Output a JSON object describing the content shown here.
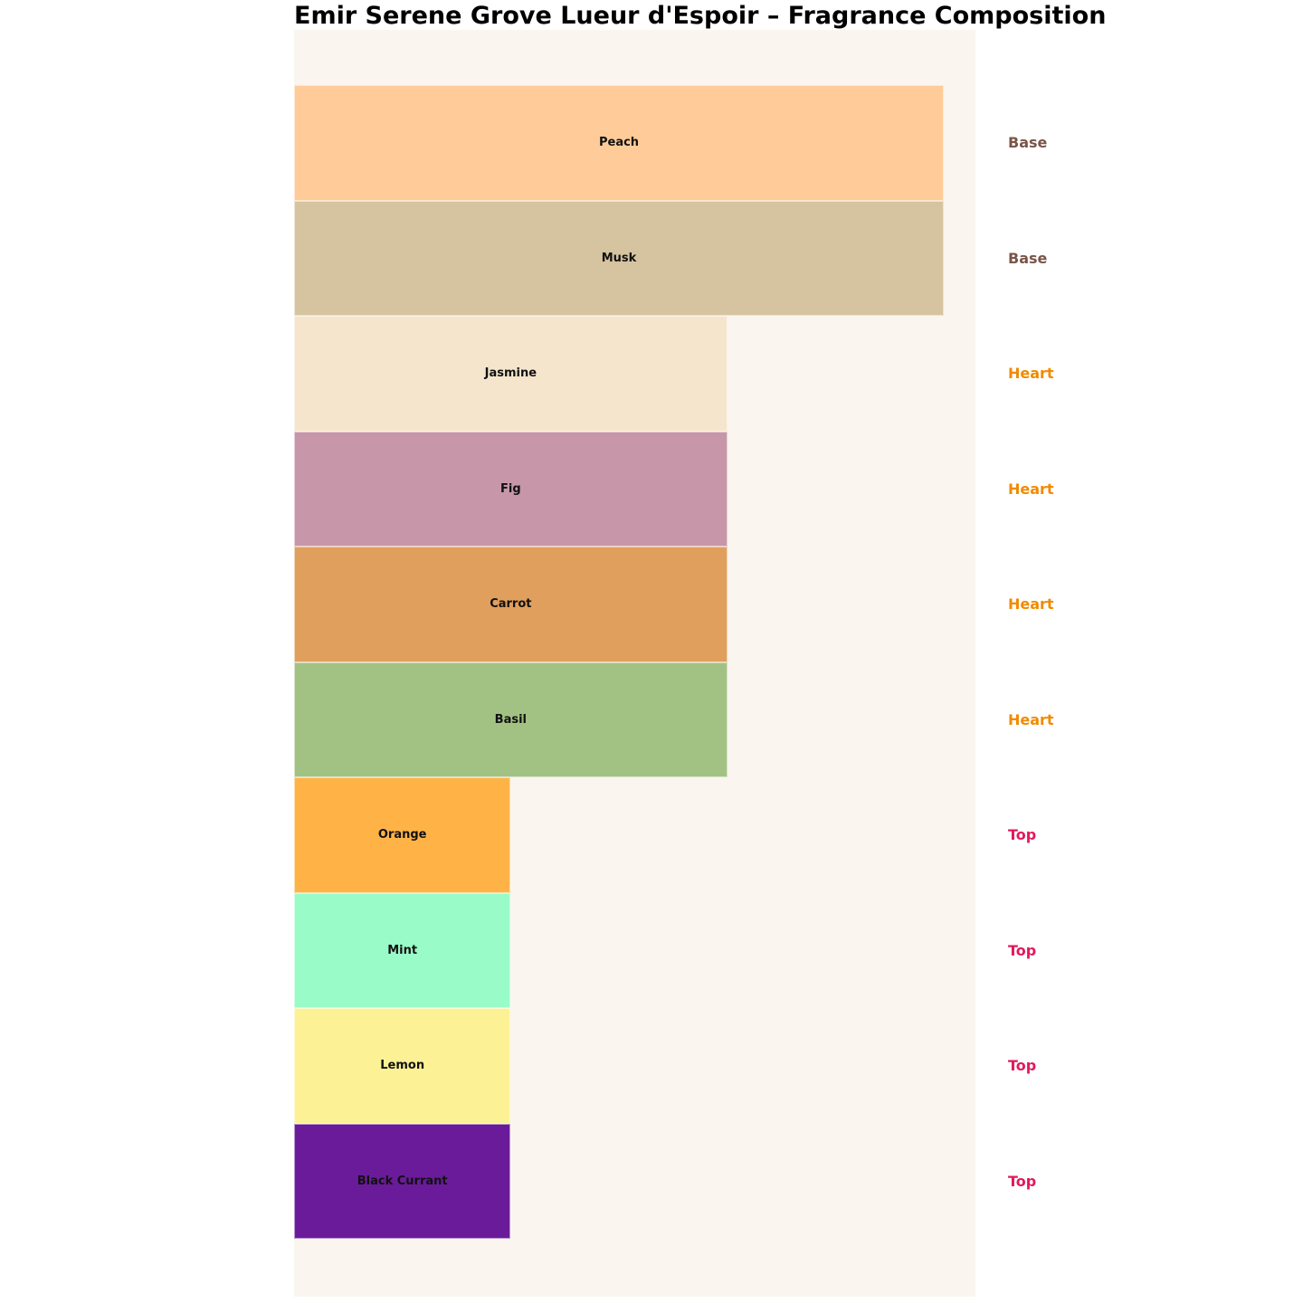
{
  "title": "Emir Serene Grove Lueur d'Espoir – Fragrance Composition",
  "colors": {
    "page_bg": "#ffffff",
    "plot_bg": "#FAF5EF",
    "title_text": "#000000",
    "bar_label_text": "#111111",
    "group_label_colors": {
      "Base": "#795548",
      "Heart": "#F18A00",
      "Top": "#E2195C"
    }
  },
  "chart_data": {
    "type": "bar",
    "orientation": "horizontal",
    "title": "Emir Serene Grove Lueur d'Espoir – Fragrance Composition",
    "xlabel": "",
    "ylabel": "",
    "grid": false,
    "legend_position": "none",
    "axes_visible": false,
    "xlim": [
      0,
      3.146
    ],
    "categories": [
      "Peach",
      "Musk",
      "Jasmine",
      "Fig",
      "Carrot",
      "Basil",
      "Orange",
      "Mint",
      "Lemon",
      "Black Currant"
    ],
    "values": [
      3,
      3,
      2,
      2,
      2,
      2,
      1,
      1,
      1,
      1
    ],
    "value_note": "relative bar lengths: Base notes = 3, Heart notes = 2, Top notes = 1",
    "groups": [
      "Base",
      "Base",
      "Heart",
      "Heart",
      "Heart",
      "Heart",
      "Top",
      "Top",
      "Top",
      "Top"
    ],
    "bar_colors": [
      "#FFCC99",
      "#D6C4A0",
      "#F5E5CC",
      "#C796A9",
      "#E09F5C",
      "#A2C284",
      "#FFB347",
      "#98FBC8",
      "#FCF295",
      "#6A1B9A"
    ]
  }
}
